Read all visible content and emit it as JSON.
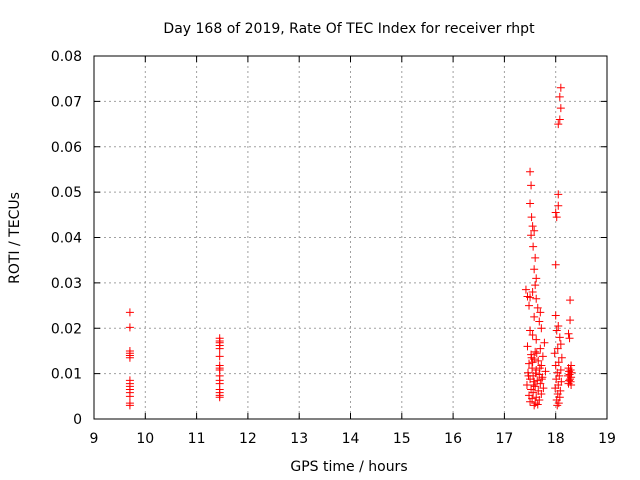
{
  "chart_data": {
    "type": "scatter",
    "title": "Day 168 of 2019, Rate Of TEC Index for receiver rhpt",
    "xlabel": "GPS time / hours",
    "ylabel": "ROTI / TECUs",
    "xlim": [
      9,
      19
    ],
    "ylim": [
      0,
      0.08
    ],
    "x_ticks": [
      "9",
      "10",
      "11",
      "12",
      "13",
      "14",
      "15",
      "16",
      "17",
      "18",
      "19"
    ],
    "y_ticks": [
      "0",
      "0.01",
      "0.02",
      "0.03",
      "0.04",
      "0.05",
      "0.06",
      "0.07",
      "0.08"
    ],
    "grid": true,
    "marker": "+",
    "color": "#ff0000",
    "series": [
      {
        "name": "ROTI",
        "points": [
          [
            9.7,
            0.0235
          ],
          [
            9.7,
            0.0202
          ],
          [
            9.7,
            0.015
          ],
          [
            9.7,
            0.0145
          ],
          [
            9.7,
            0.014
          ],
          [
            9.7,
            0.0135
          ],
          [
            9.7,
            0.0085
          ],
          [
            9.7,
            0.0078
          ],
          [
            9.7,
            0.0072
          ],
          [
            9.7,
            0.0065
          ],
          [
            9.7,
            0.0058
          ],
          [
            9.7,
            0.005
          ],
          [
            9.7,
            0.0035
          ],
          [
            9.7,
            0.003
          ],
          [
            11.45,
            0.0178
          ],
          [
            11.45,
            0.0172
          ],
          [
            11.45,
            0.0168
          ],
          [
            11.45,
            0.0162
          ],
          [
            11.45,
            0.0155
          ],
          [
            11.45,
            0.0138
          ],
          [
            11.45,
            0.0118
          ],
          [
            11.45,
            0.0112
          ],
          [
            11.45,
            0.0108
          ],
          [
            11.45,
            0.0095
          ],
          [
            11.45,
            0.0085
          ],
          [
            11.45,
            0.0078
          ],
          [
            11.45,
            0.0065
          ],
          [
            11.45,
            0.0058
          ],
          [
            11.45,
            0.0052
          ],
          [
            11.45,
            0.0048
          ],
          [
            17.42,
            0.0285
          ],
          [
            17.45,
            0.027
          ],
          [
            17.48,
            0.025
          ],
          [
            17.5,
            0.0545
          ],
          [
            17.52,
            0.0515
          ],
          [
            17.5,
            0.0475
          ],
          [
            17.53,
            0.0445
          ],
          [
            17.55,
            0.0425
          ],
          [
            17.52,
            0.0405
          ],
          [
            17.58,
            0.0415
          ],
          [
            17.56,
            0.038
          ],
          [
            17.6,
            0.0355
          ],
          [
            17.58,
            0.033
          ],
          [
            17.62,
            0.031
          ],
          [
            17.6,
            0.0295
          ],
          [
            17.55,
            0.028
          ],
          [
            17.5,
            0.0268
          ],
          [
            17.62,
            0.0265
          ],
          [
            17.65,
            0.0245
          ],
          [
            17.7,
            0.0235
          ],
          [
            17.58,
            0.0225
          ],
          [
            17.68,
            0.0215
          ],
          [
            17.72,
            0.02
          ],
          [
            17.5,
            0.0195
          ],
          [
            17.55,
            0.0185
          ],
          [
            17.62,
            0.0175
          ],
          [
            17.78,
            0.0168
          ],
          [
            17.45,
            0.016
          ],
          [
            17.7,
            0.0155
          ],
          [
            17.6,
            0.0148
          ],
          [
            17.52,
            0.0142
          ],
          [
            17.75,
            0.0138
          ],
          [
            17.58,
            0.0132
          ],
          [
            17.66,
            0.0128
          ],
          [
            17.48,
            0.0122
          ],
          [
            17.72,
            0.0118
          ],
          [
            17.54,
            0.0112
          ],
          [
            17.62,
            0.0108
          ],
          [
            17.8,
            0.0105
          ],
          [
            17.46,
            0.0102
          ],
          [
            17.68,
            0.0098
          ],
          [
            17.56,
            0.0095
          ],
          [
            17.74,
            0.0092
          ],
          [
            17.5,
            0.0088
          ],
          [
            17.64,
            0.0085
          ],
          [
            17.58,
            0.0082
          ],
          [
            17.7,
            0.0078
          ],
          [
            17.44,
            0.0075
          ],
          [
            17.6,
            0.0072
          ],
          [
            17.76,
            0.0068
          ],
          [
            17.52,
            0.0065
          ],
          [
            17.66,
            0.0062
          ],
          [
            17.56,
            0.0058
          ],
          [
            17.72,
            0.0055
          ],
          [
            17.48,
            0.0052
          ],
          [
            17.62,
            0.0048
          ],
          [
            17.54,
            0.0045
          ],
          [
            17.68,
            0.0042
          ],
          [
            17.5,
            0.0038
          ],
          [
            17.6,
            0.0035
          ],
          [
            17.58,
            0.003
          ],
          [
            17.65,
            0.0032
          ],
          [
            17.55,
            0.0125
          ],
          [
            17.63,
            0.0145
          ],
          [
            17.69,
            0.0112
          ],
          [
            17.47,
            0.0095
          ],
          [
            17.73,
            0.0088
          ],
          [
            17.57,
            0.0075
          ],
          [
            17.61,
            0.0101
          ],
          [
            17.53,
            0.0135
          ],
          [
            18.0,
            0.0455
          ],
          [
            18.02,
            0.0445
          ],
          [
            18.0,
            0.034
          ],
          [
            18.05,
            0.0495
          ],
          [
            18.05,
            0.047
          ],
          [
            18.1,
            0.073
          ],
          [
            18.08,
            0.071
          ],
          [
            18.1,
            0.0685
          ],
          [
            18.08,
            0.066
          ],
          [
            18.05,
            0.065
          ],
          [
            18.0,
            0.0228
          ],
          [
            18.05,
            0.0205
          ],
          [
            18.02,
            0.0195
          ],
          [
            18.08,
            0.018
          ],
          [
            18.1,
            0.0165
          ],
          [
            18.04,
            0.0155
          ],
          [
            17.98,
            0.0145
          ],
          [
            18.12,
            0.0135
          ],
          [
            18.06,
            0.0125
          ],
          [
            18.0,
            0.0118
          ],
          [
            18.1,
            0.0108
          ],
          [
            18.03,
            0.0102
          ],
          [
            18.07,
            0.0095
          ],
          [
            18.01,
            0.0088
          ],
          [
            18.11,
            0.0082
          ],
          [
            18.05,
            0.0075
          ],
          [
            17.99,
            0.0068
          ],
          [
            18.09,
            0.0062
          ],
          [
            18.04,
            0.0055
          ],
          [
            18.08,
            0.0048
          ],
          [
            18.02,
            0.0042
          ],
          [
            18.06,
            0.0035
          ],
          [
            18.03,
            0.003
          ],
          [
            18.28,
            0.0262
          ],
          [
            18.28,
            0.0218
          ],
          [
            18.25,
            0.0188
          ],
          [
            18.27,
            0.0178
          ],
          [
            18.3,
            0.0118
          ],
          [
            18.25,
            0.0112
          ],
          [
            18.29,
            0.0108
          ],
          [
            18.26,
            0.0105
          ],
          [
            18.31,
            0.0102
          ],
          [
            18.27,
            0.0098
          ],
          [
            18.24,
            0.0095
          ],
          [
            18.3,
            0.0092
          ],
          [
            18.28,
            0.0088
          ],
          [
            18.26,
            0.0085
          ],
          [
            18.29,
            0.0082
          ],
          [
            18.25,
            0.0078
          ],
          [
            18.3,
            0.0075
          ]
        ]
      }
    ]
  }
}
